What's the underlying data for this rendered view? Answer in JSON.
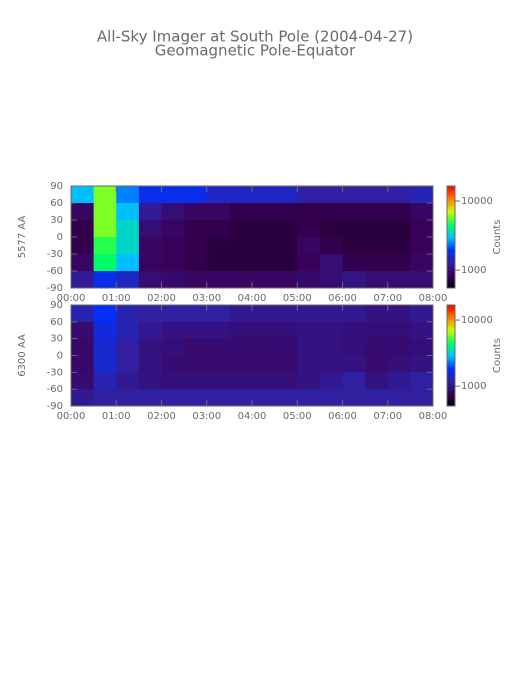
{
  "chart_data": [
    {
      "type": "heatmap",
      "title": "All-Sky Imager at South Pole (2004-04-27)",
      "subtitle": "Geomagnetic Pole-Equator",
      "ylabel": "5577 AA",
      "colorbar_label": "Counts",
      "xbins": [
        0,
        0.5,
        1,
        1.5,
        2,
        2.5,
        3,
        3.5,
        4,
        4.5,
        5,
        5.5,
        6,
        6.5,
        7,
        7.5,
        8
      ],
      "ybins": [
        90,
        60,
        30,
        0,
        -30,
        -60,
        -90
      ],
      "values": [
        [
          3000,
          6000,
          2500,
          1800,
          1800,
          1800,
          1500,
          1500,
          1500,
          1500,
          1300,
          1300,
          1300,
          1300,
          1300,
          1400
        ],
        [
          900,
          6000,
          3000,
          1200,
          1000,
          900,
          900,
          800,
          800,
          800,
          800,
          800,
          800,
          800,
          800,
          900
        ],
        [
          800,
          6000,
          3500,
          1000,
          900,
          800,
          800,
          750,
          750,
          750,
          800,
          750,
          750,
          750,
          750,
          850
        ],
        [
          800,
          5000,
          3500,
          900,
          850,
          800,
          750,
          750,
          750,
          750,
          900,
          800,
          750,
          750,
          750,
          850
        ],
        [
          900,
          4500,
          3000,
          900,
          850,
          800,
          750,
          750,
          750,
          750,
          850,
          1000,
          800,
          800,
          800,
          900
        ],
        [
          1200,
          1800,
          1500,
          1000,
          950,
          900,
          900,
          900,
          900,
          900,
          950,
          1000,
          1100,
          1000,
          1000,
          1000
        ]
      ],
      "xlim": [
        0,
        8
      ],
      "xticks": [
        {
          "value": 0,
          "label": "00:00"
        },
        {
          "value": 1,
          "label": "01:00"
        },
        {
          "value": 2,
          "label": "02:00"
        },
        {
          "value": 3,
          "label": "03:00"
        },
        {
          "value": 4,
          "label": "04:00"
        },
        {
          "value": 5,
          "label": "05:00"
        },
        {
          "value": 6,
          "label": "06:00"
        },
        {
          "value": 7,
          "label": "07:00"
        },
        {
          "value": 8,
          "label": "08:00"
        }
      ],
      "ylim": [
        -90,
        90
      ],
      "yticks": [
        90,
        60,
        30,
        0,
        -30,
        -60,
        -90
      ],
      "clim": [
        550,
        16500
      ],
      "cticks": [
        10000,
        1000
      ],
      "log_color": true,
      "colormap": [
        "#000000",
        "#3a0058",
        "#3020a0",
        "#0030ff",
        "#00c0ff",
        "#00ff60",
        "#c8ff00",
        "#ff8000",
        "#ff0000"
      ]
    },
    {
      "type": "heatmap",
      "ylabel": "6300 AA",
      "colorbar_label": "Counts",
      "xbins": [
        0,
        0.5,
        1,
        1.5,
        2,
        2.5,
        3,
        3.5,
        4,
        4.5,
        5,
        5.5,
        6,
        6.5,
        7,
        7.5,
        8
      ],
      "ybins": [
        90,
        60,
        30,
        0,
        -30,
        -60,
        -90
      ],
      "values": [
        [
          1300,
          1800,
          1300,
          1200,
          1200,
          1200,
          1200,
          1100,
          1100,
          1100,
          1100,
          1100,
          1100,
          1000,
          1000,
          1100
        ],
        [
          900,
          1600,
          1300,
          1100,
          1000,
          1000,
          1000,
          950,
          950,
          950,
          1000,
          1000,
          950,
          950,
          950,
          1000
        ],
        [
          850,
          1500,
          1200,
          1000,
          950,
          900,
          900,
          900,
          900,
          900,
          1000,
          1000,
          950,
          900,
          900,
          950
        ],
        [
          850,
          1500,
          1200,
          1000,
          900,
          900,
          900,
          900,
          900,
          900,
          1000,
          1000,
          1000,
          900,
          950,
          1000
        ],
        [
          900,
          1300,
          1100,
          1000,
          950,
          950,
          950,
          950,
          950,
          950,
          1000,
          1100,
          1200,
          1000,
          1100,
          1200
        ],
        [
          1100,
          1200,
          1200,
          1200,
          1200,
          1200,
          1200,
          1200,
          1200,
          1200,
          1200,
          1200,
          1200,
          1200,
          1200,
          1200
        ]
      ],
      "xlim": [
        0,
        8
      ],
      "xticks": [
        {
          "value": 0,
          "label": "00:00"
        },
        {
          "value": 1,
          "label": "01:00"
        },
        {
          "value": 2,
          "label": "02:00"
        },
        {
          "value": 3,
          "label": "03:00"
        },
        {
          "value": 4,
          "label": "04:00"
        },
        {
          "value": 5,
          "label": "05:00"
        },
        {
          "value": 6,
          "label": "06:00"
        },
        {
          "value": 7,
          "label": "07:00"
        },
        {
          "value": 8,
          "label": "08:00"
        }
      ],
      "ylim": [
        -90,
        90
      ],
      "yticks": [
        90,
        60,
        30,
        0,
        -30,
        -60,
        -90
      ],
      "clim": [
        500,
        16900
      ],
      "cticks": [
        10000,
        1000
      ],
      "log_color": true,
      "colormap": [
        "#000000",
        "#3a0058",
        "#3020a0",
        "#0030ff",
        "#00c0ff",
        "#00ff60",
        "#c8ff00",
        "#ff8000",
        "#ff0000"
      ]
    }
  ]
}
